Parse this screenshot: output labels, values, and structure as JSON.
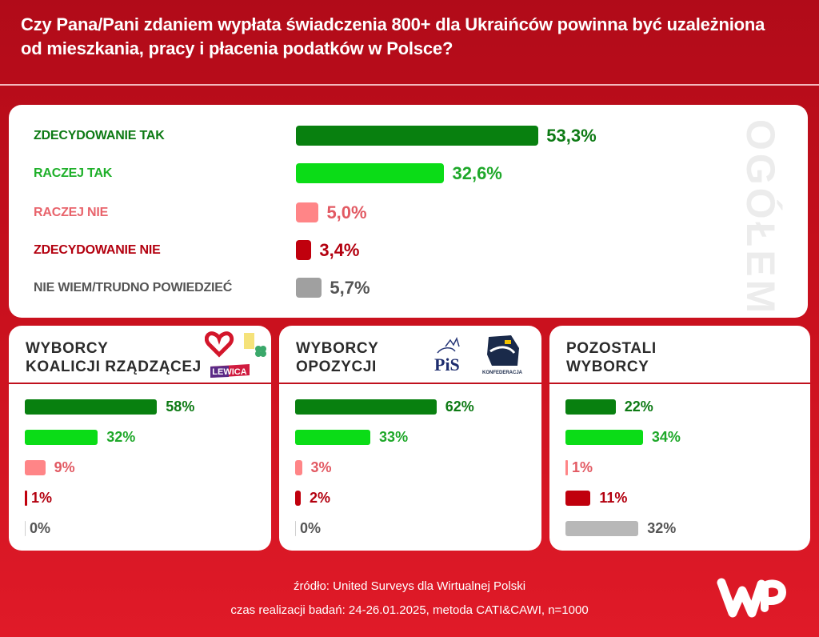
{
  "title": "Czy Pana/Pani zdaniem wypłata świadczenia 800+ dla Ukraińców powinna być uzależniona od mieszkania, pracy i płacenia podatków w Polsce?",
  "colors": {
    "background": "#c50f1c",
    "zdecydowanie_tak": "#08800f",
    "raczej_tak": "#0bdc17",
    "raczej_nie": "#ff8587",
    "zdecydowanie_nie": "#c0000d",
    "nie_wiem": "#a0a0a0"
  },
  "chart_data": [
    {
      "type": "bar",
      "orientation": "horizontal",
      "title": "OGÓŁEM",
      "categories": [
        "ZDECYDOWANIE TAK",
        "RACZEJ TAK",
        "RACZEJ NIE",
        "ZDECYDOWANIE NIE",
        "NIE WIEM/TRUDNO POWIEDZIEĆ"
      ],
      "values": [
        53.3,
        32.6,
        5.0,
        3.4,
        5.7
      ],
      "value_labels": [
        "53,3%",
        "32,6%",
        "5,0%",
        "3,4%",
        "5,7%"
      ],
      "unit": "%"
    },
    {
      "type": "bar",
      "orientation": "horizontal",
      "title": "WYBORCY\nKOALICJI RZĄDZĄCEJ",
      "categories": [
        "ZDECYDOWANIE TAK",
        "RACZEJ TAK",
        "RACZEJ NIE",
        "ZDECYDOWANIE NIE",
        "NIE WIEM/TRUDNO POWIEDZIEĆ"
      ],
      "values": [
        58,
        32,
        9,
        1,
        0
      ],
      "value_labels": [
        "58%",
        "32%",
        "9%",
        "1%",
        "0%"
      ],
      "logos": [
        "heart-logo",
        "trzecia-droga-logo",
        "lewica-logo"
      ],
      "logo_text": "LEWICA",
      "unit": "%"
    },
    {
      "type": "bar",
      "orientation": "horizontal",
      "title": "WYBORCY\nOPOZYCJI",
      "categories": [
        "ZDECYDOWANIE TAK",
        "RACZEJ TAK",
        "RACZEJ NIE",
        "ZDECYDOWANIE NIE",
        "NIE WIEM/TRUDNO POWIEDZIEĆ"
      ],
      "values": [
        62,
        33,
        3,
        2,
        0
      ],
      "value_labels": [
        "62%",
        "33%",
        "3%",
        "2%",
        "0%"
      ],
      "logos": [
        "pis-logo",
        "konfederacja-logo"
      ],
      "logo_text": [
        "PiS",
        "KONFEDERACJA"
      ],
      "unit": "%"
    },
    {
      "type": "bar",
      "orientation": "horizontal",
      "title": "POZOSTALI\nWYBORCY",
      "categories": [
        "ZDECYDOWANIE TAK",
        "RACZEJ TAK",
        "RACZEJ NIE",
        "ZDECYDOWANIE NIE",
        "NIE WIEM/TRUDNO POWIEDZIEĆ"
      ],
      "values": [
        22,
        34,
        1,
        11,
        32
      ],
      "value_labels": [
        "22%",
        "34%",
        "1%",
        "11%",
        "32%"
      ],
      "unit": "%"
    }
  ],
  "footer": {
    "source": "źródło: United Surveys dla Wirtualnej Polski",
    "meta": "czas realizacji badań: 24-26.01.2025, metoda CATI&CAWI, n=1000",
    "brand": "WP"
  }
}
